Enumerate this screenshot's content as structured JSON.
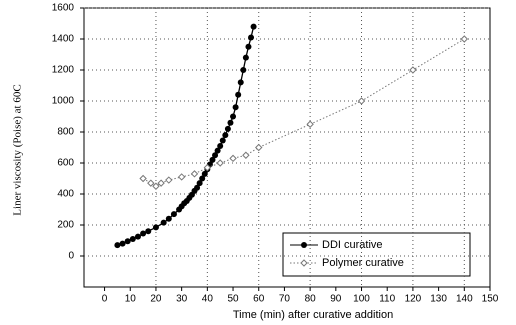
{
  "chart_data": {
    "type": "line",
    "xlabel": "Time (min) after curative addition",
    "ylabel": "Liner viscosity (Poise) at 60C",
    "xlim": [
      -8,
      150
    ],
    "xticks": [
      0,
      10,
      20,
      30,
      40,
      50,
      60,
      70,
      80,
      90,
      100,
      110,
      120,
      130,
      140,
      150
    ],
    "ylim": [
      -200,
      1600
    ],
    "yticks": [
      0,
      200,
      400,
      600,
      800,
      1000,
      1200,
      1400,
      1600
    ],
    "grid": true,
    "legend": "lower right",
    "series": [
      {
        "name": "DDI curative",
        "color": "#000000",
        "style": "solid",
        "marker": "circle",
        "x": [
          5,
          7,
          9,
          11,
          13,
          15,
          17,
          20,
          23,
          25,
          27,
          29,
          30,
          31,
          32,
          33,
          34,
          35,
          36,
          37,
          38,
          39,
          40,
          41,
          42,
          43,
          44,
          45,
          46,
          47,
          48,
          49,
          50,
          51,
          52,
          53,
          54,
          55,
          56,
          57,
          58
        ],
        "values": [
          70,
          80,
          95,
          110,
          125,
          145,
          160,
          185,
          215,
          240,
          270,
          300,
          320,
          340,
          355,
          375,
          395,
          420,
          440,
          470,
          500,
          530,
          560,
          590,
          620,
          650,
          680,
          710,
          745,
          780,
          820,
          860,
          900,
          960,
          1040,
          1120,
          1200,
          1280,
          1350,
          1410,
          1480
        ]
      },
      {
        "name": "Polymer curative",
        "color": "#777777",
        "style": "dotted",
        "marker": "diamond",
        "x": [
          15,
          18,
          20,
          22,
          25,
          30,
          35,
          40,
          45,
          50,
          55,
          60,
          80,
          100,
          120,
          140
        ],
        "values": [
          500,
          470,
          450,
          470,
          490,
          510,
          530,
          570,
          600,
          630,
          650,
          700,
          850,
          1000,
          1200,
          1400
        ]
      }
    ]
  }
}
